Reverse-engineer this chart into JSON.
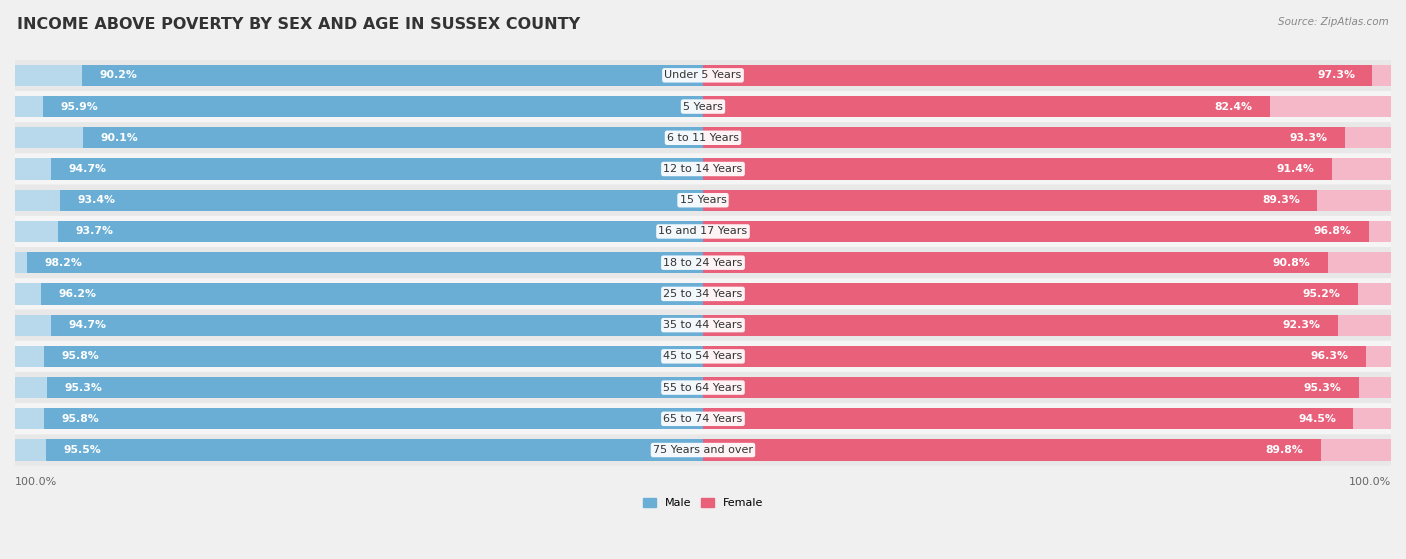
{
  "title": "INCOME ABOVE POVERTY BY SEX AND AGE IN SUSSEX COUNTY",
  "source": "Source: ZipAtlas.com",
  "categories": [
    "Under 5 Years",
    "5 Years",
    "6 to 11 Years",
    "12 to 14 Years",
    "15 Years",
    "16 and 17 Years",
    "18 to 24 Years",
    "25 to 34 Years",
    "35 to 44 Years",
    "45 to 54 Years",
    "55 to 64 Years",
    "65 to 74 Years",
    "75 Years and over"
  ],
  "male_values": [
    90.2,
    95.9,
    90.1,
    94.7,
    93.4,
    93.7,
    98.2,
    96.2,
    94.7,
    95.8,
    95.3,
    95.8,
    95.5
  ],
  "female_values": [
    97.3,
    82.4,
    93.3,
    91.4,
    89.3,
    96.8,
    90.8,
    95.2,
    92.3,
    96.3,
    95.3,
    94.5,
    89.8
  ],
  "male_color_dark": "#6aaed6",
  "male_color_light": "#b8d8ec",
  "female_color_dark": "#e8607a",
  "female_color_light": "#f4b8c8",
  "male_label": "Male",
  "female_label": "Female",
  "background_color": "#f0f0f0",
  "row_bg_even": "#e8e8e8",
  "row_bg_odd": "#f5f5f5",
  "title_fontsize": 11.5,
  "label_fontsize": 8.0,
  "value_fontsize": 7.8,
  "source_fontsize": 7.5
}
